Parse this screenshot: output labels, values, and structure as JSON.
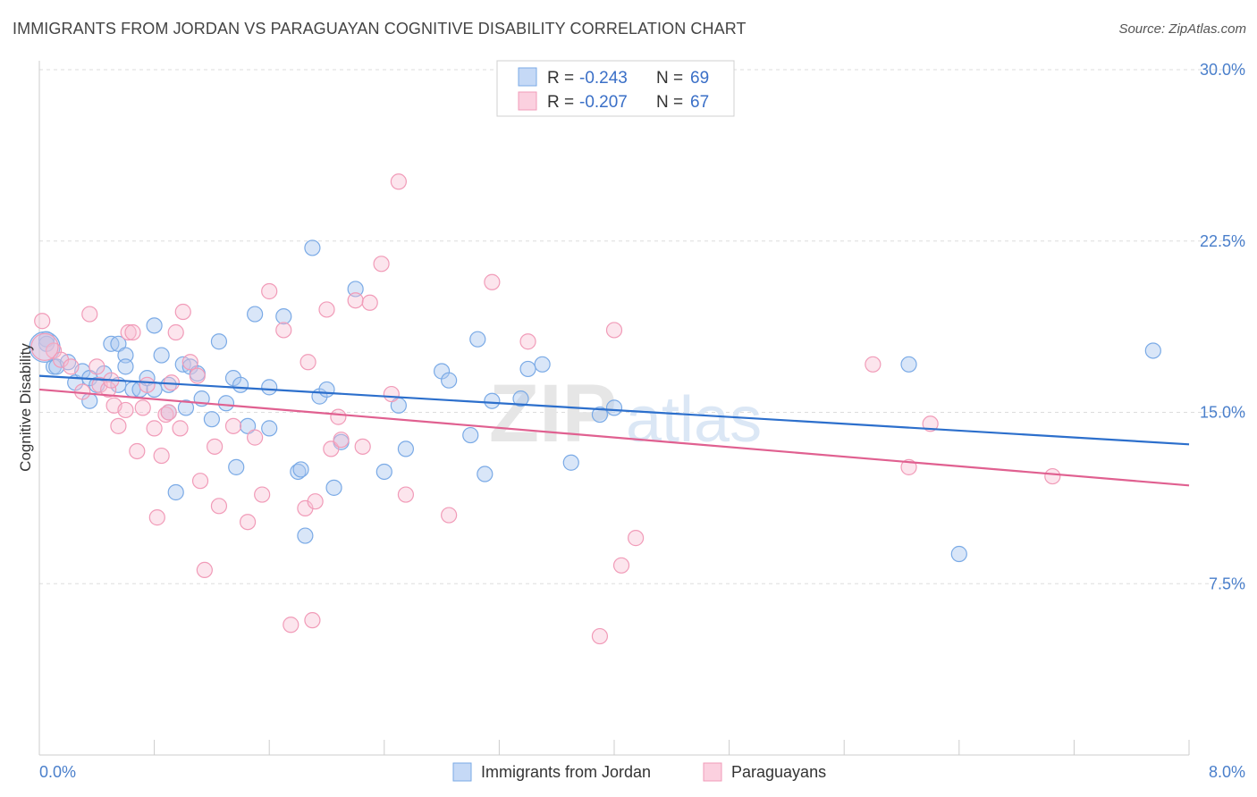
{
  "title": "IMMIGRANTS FROM JORDAN VS PARAGUAYAN COGNITIVE DISABILITY CORRELATION CHART",
  "source": "Source: ZipAtlas.com",
  "watermark": "ZIPatlas",
  "chart_data": {
    "type": "scatter",
    "ylabel": "Cognitive Disability",
    "xlim": [
      0,
      8
    ],
    "ylim": [
      0,
      30
    ],
    "x_tick_labels": [
      "0.0%",
      "8.0%"
    ],
    "y_ticks": [
      7.5,
      15,
      22.5,
      30
    ],
    "y_tick_labels": [
      "7.5%",
      "15.0%",
      "22.5%",
      "30.0%"
    ],
    "grid": "horizontal dashed",
    "legend": {
      "placement": "top-center",
      "entries": [
        {
          "r_label": "R =",
          "r_value": "-0.243",
          "n_label": "N =",
          "n_value": "69"
        },
        {
          "r_label": "R =",
          "r_value": "-0.207",
          "n_label": "N =",
          "n_value": "67"
        }
      ]
    },
    "bottom_legend": [
      "Immigrants from Jordan",
      "Paraguayans"
    ],
    "series": [
      {
        "name": "Immigrants from Jordan",
        "color": "#7aaae6",
        "line_color": "#2c6fcc",
        "trend": [
          [
            0,
            16.6
          ],
          [
            8,
            13.6
          ]
        ],
        "points": [
          [
            0.05,
            18.2
          ],
          [
            0.05,
            18.0
          ],
          [
            0.1,
            17.0
          ],
          [
            0.12,
            17.0
          ],
          [
            0.2,
            17.2
          ],
          [
            0.25,
            16.3
          ],
          [
            0.3,
            16.8
          ],
          [
            0.35,
            16.5
          ],
          [
            0.35,
            15.5
          ],
          [
            0.4,
            16.2
          ],
          [
            0.45,
            16.7
          ],
          [
            0.5,
            18.0
          ],
          [
            0.55,
            18.0
          ],
          [
            0.55,
            16.2
          ],
          [
            0.6,
            17.5
          ],
          [
            0.6,
            17.0
          ],
          [
            0.65,
            16.0
          ],
          [
            0.7,
            16.0
          ],
          [
            0.75,
            16.5
          ],
          [
            0.8,
            16.0
          ],
          [
            0.8,
            18.8
          ],
          [
            0.85,
            17.5
          ],
          [
            0.9,
            15.0
          ],
          [
            0.9,
            16.2
          ],
          [
            0.95,
            11.5
          ],
          [
            1.0,
            17.1
          ],
          [
            1.02,
            15.2
          ],
          [
            1.05,
            17.0
          ],
          [
            1.1,
            16.7
          ],
          [
            1.13,
            15.6
          ],
          [
            1.2,
            14.7
          ],
          [
            1.25,
            18.1
          ],
          [
            1.3,
            15.4
          ],
          [
            1.35,
            16.5
          ],
          [
            1.37,
            12.6
          ],
          [
            1.4,
            16.2
          ],
          [
            1.45,
            14.4
          ],
          [
            1.5,
            19.3
          ],
          [
            1.6,
            16.1
          ],
          [
            1.6,
            14.3
          ],
          [
            1.7,
            19.2
          ],
          [
            1.8,
            12.4
          ],
          [
            1.82,
            12.5
          ],
          [
            1.85,
            9.6
          ],
          [
            1.9,
            22.2
          ],
          [
            1.95,
            15.7
          ],
          [
            2.0,
            16.0
          ],
          [
            2.05,
            11.7
          ],
          [
            2.1,
            13.7
          ],
          [
            2.2,
            20.4
          ],
          [
            2.4,
            12.4
          ],
          [
            2.5,
            15.3
          ],
          [
            2.55,
            13.4
          ],
          [
            2.8,
            16.8
          ],
          [
            2.85,
            16.4
          ],
          [
            3.0,
            14.0
          ],
          [
            3.05,
            18.2
          ],
          [
            3.1,
            12.3
          ],
          [
            3.15,
            15.5
          ],
          [
            3.35,
            15.6
          ],
          [
            3.4,
            16.9
          ],
          [
            3.5,
            17.1
          ],
          [
            3.7,
            12.8
          ],
          [
            3.9,
            14.9
          ],
          [
            4.0,
            15.2
          ],
          [
            6.05,
            17.1
          ],
          [
            6.4,
            8.8
          ],
          [
            7.75,
            17.7
          ],
          [
            0.0,
            17.0
          ]
        ],
        "sizes_note": "large bubble at origin"
      },
      {
        "name": "Paraguayans",
        "color": "#f19bb8",
        "line_color": "#e06090",
        "trend": [
          [
            0,
            16.0
          ],
          [
            8,
            11.8
          ]
        ],
        "points": [
          [
            0.02,
            19.0
          ],
          [
            0.1,
            17.7
          ],
          [
            0.15,
            17.3
          ],
          [
            0.22,
            17.0
          ],
          [
            0.3,
            15.9
          ],
          [
            0.35,
            19.3
          ],
          [
            0.4,
            17.0
          ],
          [
            0.42,
            16.2
          ],
          [
            0.48,
            16.0
          ],
          [
            0.5,
            16.4
          ],
          [
            0.52,
            15.3
          ],
          [
            0.55,
            14.4
          ],
          [
            0.6,
            15.1
          ],
          [
            0.62,
            18.5
          ],
          [
            0.65,
            18.5
          ],
          [
            0.68,
            13.3
          ],
          [
            0.72,
            15.2
          ],
          [
            0.75,
            16.2
          ],
          [
            0.8,
            14.3
          ],
          [
            0.82,
            10.4
          ],
          [
            0.85,
            13.1
          ],
          [
            0.88,
            14.9
          ],
          [
            0.9,
            15.0
          ],
          [
            0.92,
            16.3
          ],
          [
            0.95,
            18.5
          ],
          [
            0.98,
            14.3
          ],
          [
            1.0,
            19.4
          ],
          [
            1.05,
            17.2
          ],
          [
            1.1,
            16.6
          ],
          [
            1.12,
            12.0
          ],
          [
            1.15,
            8.1
          ],
          [
            1.22,
            13.5
          ],
          [
            1.25,
            10.9
          ],
          [
            1.35,
            14.4
          ],
          [
            1.45,
            10.2
          ],
          [
            1.5,
            13.9
          ],
          [
            1.55,
            11.4
          ],
          [
            1.6,
            20.3
          ],
          [
            1.7,
            18.6
          ],
          [
            1.75,
            5.7
          ],
          [
            1.85,
            10.8
          ],
          [
            1.87,
            17.2
          ],
          [
            1.9,
            5.9
          ],
          [
            1.92,
            11.1
          ],
          [
            2.0,
            19.5
          ],
          [
            2.03,
            13.4
          ],
          [
            2.08,
            14.8
          ],
          [
            2.1,
            13.8
          ],
          [
            2.2,
            19.9
          ],
          [
            2.25,
            13.5
          ],
          [
            2.3,
            19.8
          ],
          [
            2.38,
            21.5
          ],
          [
            2.45,
            15.8
          ],
          [
            2.5,
            25.1
          ],
          [
            2.55,
            11.4
          ],
          [
            2.85,
            10.5
          ],
          [
            3.15,
            20.7
          ],
          [
            3.4,
            18.1
          ],
          [
            4.0,
            18.6
          ],
          [
            4.05,
            8.3
          ],
          [
            4.15,
            9.5
          ],
          [
            3.9,
            5.2
          ],
          [
            5.8,
            17.1
          ],
          [
            6.05,
            12.6
          ],
          [
            6.2,
            14.5
          ],
          [
            7.05,
            12.2
          ],
          [
            0.0,
            17.0
          ]
        ]
      }
    ]
  }
}
